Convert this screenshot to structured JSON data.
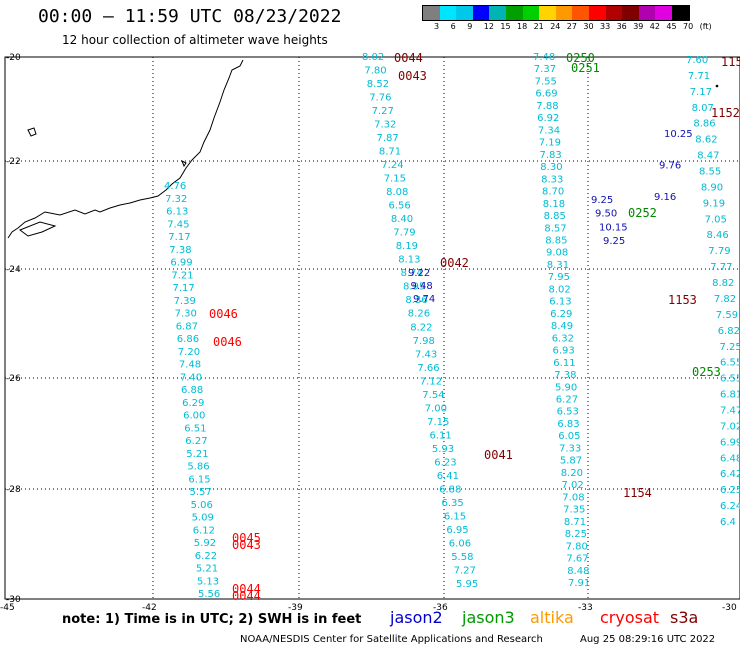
{
  "title": "00:00 – 11:59 UTC 08/23/2022",
  "subtitle": "12 hour collection of altimeter wave heights",
  "scale": {
    "labels": [
      "3",
      "6",
      "9",
      "12",
      "15",
      "18",
      "21",
      "24",
      "27",
      "30",
      "33",
      "36",
      "39",
      "42",
      "45",
      "70",
      "(ft)"
    ],
    "colors": [
      "#7f7f7f",
      "#00e5ff",
      "#00c8e8",
      "#0000ff",
      "#00b4b4",
      "#00a000",
      "#00d000",
      "#ffd400",
      "#ff9900",
      "#ff5500",
      "#ff0000",
      "#b00000",
      "#800000",
      "#b000b0",
      "#e000e0",
      "#000000"
    ]
  },
  "axes": {
    "lat_labels": [
      "-20",
      "-22",
      "-24",
      "-26",
      "-28",
      "-30"
    ],
    "lon_labels": [
      "-45",
      "-42",
      "-39",
      "-36",
      "-33",
      "-30"
    ]
  },
  "note": "note: 1) Time is in UTC; 2) SWH is in feet",
  "satellites": [
    {
      "name": "jason2",
      "color": "#0000cc"
    },
    {
      "name": "jason3",
      "color": "#009900"
    },
    {
      "name": "altika",
      "color": "#ff9900"
    },
    {
      "name": "cryosat",
      "color": "#ff0000"
    },
    {
      "name": "s3a",
      "color": "#800000"
    }
  ],
  "credit_left": "NOAA/NESDIS Center for Satellite Applications and Research",
  "credit_right": "Aug 25 08:29:16 UTC 2022",
  "tracks": [
    {
      "id": "t1",
      "color": "#00bcd4",
      "values": [
        "4.76",
        "7.32",
        "6.13",
        "7.45",
        "7.17",
        "7.38",
        "6.99",
        "7.21",
        "7.17",
        "7.39",
        "7.30",
        "6.87",
        "6.86",
        "7.20",
        "7.48",
        "7.40",
        "6.88",
        "6.29",
        "6.00",
        "6.51",
        "6.27",
        "5.21",
        "5.86",
        "6.15",
        "5.57",
        "5.06",
        "5.09",
        "6.12",
        "5.92",
        "6.22",
        "5.21",
        "5.13",
        "5.56"
      ]
    },
    {
      "id": "t2",
      "color": "#00bcd4",
      "values": [
        "8.02",
        "7.80",
        "8.52",
        "7.76",
        "7.27",
        "7.32",
        "7.87",
        "8.71",
        "7.24",
        "7.15",
        "8.08",
        "6.56",
        "8.40",
        "7.79",
        "8.19",
        "8.13",
        "8.74",
        "8.95",
        "8.36",
        "8.26",
        "8.22",
        "7.98",
        "7.43",
        "7.66",
        "7.12",
        "7.54",
        "7.00",
        "7.15",
        "6.11",
        "5.93",
        "6.23",
        "6.41",
        "6.88",
        "6.35",
        "6.15",
        "6.95",
        "6.06",
        "5.58",
        "7.27",
        "5.95"
      ]
    },
    {
      "id": "t2b",
      "color": "#1010b0",
      "values": [
        "9.22",
        "9.48",
        "9.74"
      ]
    },
    {
      "id": "t3",
      "color": "#00bcd4",
      "values": [
        "7.48",
        "7.37",
        "7.55",
        "6.69",
        "7.88",
        "6.92",
        "7.34",
        "7.19",
        "7.83",
        "8.30",
        "8.33",
        "8.70",
        "8.18",
        "8.85",
        "8.57",
        "8.85",
        "9.08",
        "8.31",
        "7.95",
        "8.02",
        "6.13",
        "6.29",
        "8.49",
        "6.32",
        "6.93",
        "6.11",
        "7.38",
        "5.90",
        "6.27",
        "6.53",
        "6.83",
        "6.05",
        "7.33",
        "5.87",
        "8.20",
        "7.02",
        "7.08",
        "7.35",
        "8.71",
        "8.25",
        "7.80",
        "7.67",
        "8.48",
        "7.91"
      ]
    },
    {
      "id": "t3b",
      "color": "#1010b0",
      "values": [
        "9.25",
        "9.50",
        "10.15",
        "9.25"
      ]
    },
    {
      "id": "t4",
      "color": "#00bcd4",
      "values": [
        "7.60",
        "7.71",
        "7.17",
        "8.07",
        "8.86",
        "8.62",
        "8.47",
        "8.55",
        "8.90",
        "9.19",
        "7.05",
        "8.46",
        "7.79",
        "7.77",
        "8.82",
        "7.82",
        "7.59",
        "6.82",
        "7.25",
        "6.55",
        "6.55",
        "6.81",
        "7.47",
        "7.02",
        "6.99",
        "6.48",
        "6.42",
        "6.25",
        "6.24",
        "6.4"
      ]
    },
    {
      "id": "t4b",
      "color": "#1010b0",
      "values": [
        "10.25",
        "9.76",
        "9.16"
      ]
    }
  ],
  "time_labels": [
    {
      "text": "0044",
      "color": "#800000"
    },
    {
      "text": "0043",
      "color": "#800000"
    },
    {
      "text": "0250",
      "color": "#008800"
    },
    {
      "text": "0251",
      "color": "#008800"
    },
    {
      "text": "115",
      "color": "#800000"
    },
    {
      "text": "1152",
      "color": "#800000"
    },
    {
      "text": "0252",
      "color": "#008800"
    },
    {
      "text": "0042",
      "color": "#800000"
    },
    {
      "text": "1153",
      "color": "#800000"
    },
    {
      "text": "0046",
      "color": "#ff0000"
    },
    {
      "text": "0046",
      "color": "#ff0000"
    },
    {
      "text": "0253",
      "color": "#008800"
    },
    {
      "text": "0041",
      "color": "#800000"
    },
    {
      "text": "1154",
      "color": "#800000"
    },
    {
      "text": "0045",
      "color": "#ff0000"
    },
    {
      "text": "0043",
      "color": "#ff0000"
    },
    {
      "text": "0044",
      "color": "#ff0000"
    },
    {
      "text": "0044",
      "color": "#ff0000"
    }
  ]
}
